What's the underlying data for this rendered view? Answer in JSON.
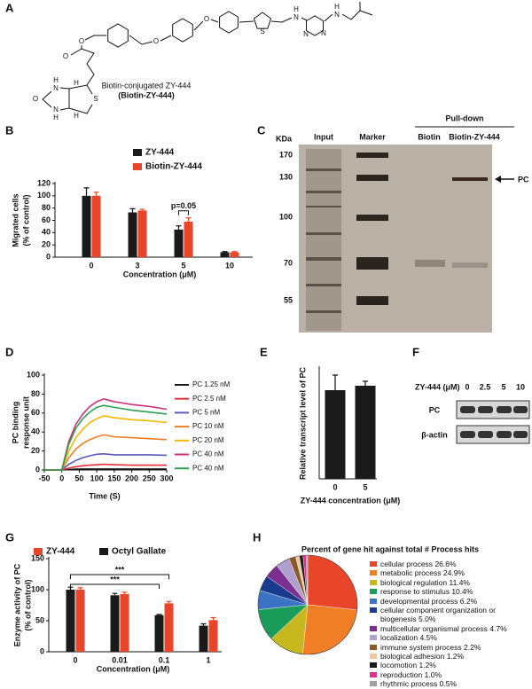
{
  "panels": [
    "A",
    "B",
    "C",
    "D",
    "E",
    "F",
    "G",
    "H"
  ],
  "structure": {
    "caption": [
      "Biotin-conjugated ZY-444",
      "(Biotin-ZY-444)"
    ],
    "atoms": [
      "H",
      "N",
      "O",
      "N",
      "H",
      "S",
      "H",
      "H",
      "O",
      "O",
      "O",
      "O",
      "S",
      "H",
      "N",
      "N",
      "N",
      "H",
      "N"
    ]
  },
  "gel": {
    "unit": "KDa",
    "lanes": [
      "Input",
      "Marker",
      "Biotin",
      "Biotin-ZY-444"
    ],
    "group": "Pull-down",
    "markers": [
      "170",
      "130",
      "100",
      "70",
      "55"
    ],
    "target": "PC"
  },
  "blot": {
    "treatment": "ZY-444 (μM)",
    "lanes": [
      "0",
      "2.5",
      "5",
      "10"
    ],
    "rows": [
      "PC",
      "β-actin"
    ]
  },
  "chart_data": [
    {
      "type": "bar",
      "categories": [
        "0",
        "3",
        "5",
        "10"
      ],
      "series": [
        {
          "name": "ZY-444",
          "color": "#1a1a1a",
          "values": [
            100,
            73,
            45,
            8
          ],
          "errors": [
            13,
            6,
            6,
            1
          ]
        },
        {
          "name": "Biotin-ZY-444",
          "color": "#e8452a",
          "values": [
            100,
            76,
            58,
            8
          ],
          "errors": [
            6,
            2,
            6,
            1
          ]
        }
      ],
      "ylim": [
        0,
        120
      ],
      "yticks": [
        0,
        20,
        40,
        60,
        80,
        100,
        120
      ],
      "ylabel": [
        "Migrated cells",
        "(% of control)"
      ],
      "xlabel": "Concentration (μM)",
      "annotations": [
        "p=0.05"
      ]
    },
    {
      "type": "line",
      "x": [
        -50,
        0,
        20,
        40,
        60,
        80,
        100,
        120,
        150,
        200,
        250,
        300
      ],
      "series": [
        {
          "name": "PC 1.25 nM",
          "color": "#1a1a1a",
          "values": [
            0,
            0,
            0.5,
            0.8,
            1,
            1,
            1,
            1,
            1,
            1,
            1,
            1
          ]
        },
        {
          "name": "PC 2.5 nM",
          "color": "#e8303a",
          "values": [
            0,
            0,
            2,
            3.5,
            4.5,
            5,
            5.5,
            6,
            5.5,
            5,
            5,
            5
          ]
        },
        {
          "name": "PC 5 nM",
          "color": "#5a5ab8",
          "values": [
            0,
            0,
            6,
            10,
            13,
            15,
            16.5,
            17,
            16,
            16,
            16,
            15.5
          ]
        },
        {
          "name": "PC 10 nM",
          "color": "#f07e26",
          "values": [
            0,
            0,
            13,
            22,
            28,
            32,
            35,
            37,
            35,
            34,
            33,
            32
          ]
        },
        {
          "name": "PC 20 nM",
          "color": "#f5b800",
          "values": [
            0,
            0,
            20,
            34,
            43,
            50,
            54,
            57,
            55,
            53,
            52,
            50
          ]
        },
        {
          "name": "PC 40 nM",
          "color": "#d0307a",
          "values": [
            0,
            0,
            30,
            48,
            59,
            67,
            72,
            75,
            72,
            69,
            67,
            64
          ]
        },
        {
          "name": "PC 40 nM",
          "color": "#2aa050",
          "values": [
            0,
            0,
            27,
            44,
            54,
            61,
            66,
            68,
            66,
            63,
            61,
            59
          ]
        }
      ],
      "xlim": [
        -50,
        300
      ],
      "xticks": [
        -50,
        0,
        50,
        100,
        150,
        200,
        250,
        300
      ],
      "ylim": [
        0,
        100
      ],
      "yticks": [
        0,
        20,
        40,
        60,
        80,
        100
      ],
      "xlabel": "Time (S)",
      "ylabel": [
        "PC binding",
        "response unit"
      ]
    },
    {
      "type": "bar",
      "categories": [
        "0",
        "5"
      ],
      "series": [
        {
          "color": "#1a1a1a",
          "values": [
            100,
            105
          ],
          "errors": [
            17,
            5
          ]
        }
      ],
      "ylim": [
        0,
        125
      ],
      "ylabel": [
        "Relative transcript level of PC"
      ],
      "xlabel": "ZY-444 concentration (μM)"
    },
    {
      "type": "bar",
      "categories": [
        "0",
        "0.01",
        "0.1",
        "1"
      ],
      "series": [
        {
          "name": "ZY-444",
          "color": "#e8452a",
          "values": [
            100,
            93,
            78,
            51
          ],
          "errors": [
            3,
            3,
            3,
            4
          ]
        },
        {
          "name": "Octyl Gallate",
          "color": "#1a1a1a",
          "values": [
            100,
            91,
            59,
            42
          ],
          "errors": [
            4,
            3,
            1,
            3
          ]
        }
      ],
      "ylim": [
        0,
        150
      ],
      "yticks": [
        0,
        50,
        100,
        150
      ],
      "ylabel": [
        "Enzyme activity of PC",
        "(% of control)"
      ],
      "xlabel": "Concentration (μM)",
      "annotations": [
        "***",
        "***"
      ]
    },
    {
      "type": "pie",
      "title": "Percent of gene hit against total # Process hits",
      "categories": [
        "cellular process",
        "metabolic process",
        "biological regulation",
        "response to stimulus",
        "developmental process",
        "cellular component organization or biogenesis",
        "multicellular organismal process",
        "localization",
        "immune system process",
        "biological adhesion",
        "locomotion",
        "reproduction",
        "rhythmic process"
      ],
      "values": [
        26.6,
        24.9,
        11.4,
        10.4,
        6.2,
        5.0,
        4.7,
        4.5,
        2.2,
        1.2,
        1.2,
        1.0,
        0.5
      ],
      "value_labels": [
        "26.6%",
        "24.9%",
        "11.4%",
        "10.4%",
        "6.2%",
        "5.0%",
        "4.7%",
        "4.5%",
        "2.2%",
        "1.2%",
        "1.2%",
        "1.0%",
        "0.5%"
      ],
      "colors": [
        "#e8452a",
        "#f07e26",
        "#c8b820",
        "#1a9c5a",
        "#3b72c4",
        "#1a3a8c",
        "#7b2f8e",
        "#b0a0d0",
        "#8b5a2b",
        "#f0c8a0",
        "#1a1a1a",
        "#e0308a",
        "#a0a0a0"
      ]
    }
  ]
}
